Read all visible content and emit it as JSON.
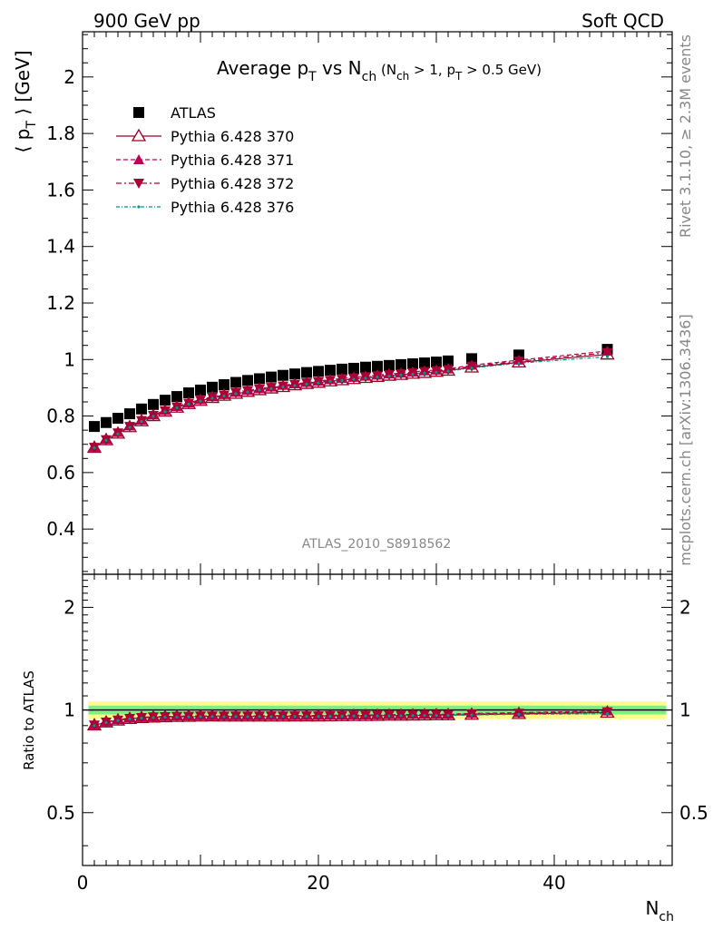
{
  "header": {
    "left": "900 GeV pp",
    "right": "Soft QCD"
  },
  "side_texts": {
    "rivet": "Rivet 3.1.10, ≥ 2.3M events",
    "mcplots": "mcplots.cern.ch [arXiv:1306.3436]"
  },
  "colors": {
    "atlas": "#000000",
    "pythia_370": "#990022",
    "pythia_371": "#bb0055",
    "pythia_372": "#aa0033",
    "pythia_376": "#009988",
    "band_inner": "#80ee80",
    "band_outer": "#ffff88"
  },
  "chart_data": [
    {
      "type": "scatter",
      "title": "Average p_T vs N_ch (N_ch > 1, p_T > 0.5 GeV)",
      "title_parts": {
        "main": "Average p",
        "main_sub": "T",
        "mid": " vs N",
        "mid_sub": "ch",
        "cond_a": " (N",
        "cond_a_sub": "ch",
        "cond_b": " > 1, p",
        "cond_b_sub": "T",
        "cond_c": " > 0.5 GeV)"
      },
      "ylabel": "⟨ p_T ⟩ [GeV]",
      "ylabel_parts": {
        "open": "⟨ p",
        "sub": "T",
        "close": " ⟩  [GeV]"
      },
      "xlim": [
        0,
        50
      ],
      "ylim": [
        0.24,
        2.16
      ],
      "yticks": [
        "0.4",
        "0.6",
        "0.8",
        "1",
        "1.2",
        "1.4",
        "1.6",
        "1.8",
        "2"
      ],
      "watermark": "ATLAS_2010_S8918562",
      "legend": {
        "position": "top-left",
        "entries": [
          "ATLAS",
          "Pythia 6.428 370",
          "Pythia 6.428 371",
          "Pythia 6.428 372",
          "Pythia 6.428 376"
        ]
      },
      "x": [
        1,
        2,
        3,
        4,
        5,
        6,
        7,
        8,
        9,
        10,
        11,
        12,
        13,
        14,
        15,
        16,
        17,
        18,
        19,
        20,
        21,
        22,
        23,
        24,
        25,
        26,
        27,
        28,
        29,
        30,
        31,
        33,
        37,
        44.5
      ],
      "series": [
        {
          "name": "ATLAS",
          "marker": "square",
          "values": [
            0.763,
            0.777,
            0.792,
            0.808,
            0.825,
            0.841,
            0.856,
            0.869,
            0.882,
            0.892,
            0.902,
            0.911,
            0.919,
            0.926,
            0.932,
            0.938,
            0.944,
            0.949,
            0.954,
            0.958,
            0.962,
            0.966,
            0.969,
            0.973,
            0.976,
            0.979,
            0.982,
            0.985,
            0.988,
            0.991,
            0.995,
            1.003,
            1.016,
            1.036
          ]
        },
        {
          "name": "Pythia 6.428 370",
          "marker": "triangle-up-open",
          "values": [
            0.688,
            0.715,
            0.738,
            0.761,
            0.782,
            0.8,
            0.816,
            0.83,
            0.843,
            0.854,
            0.864,
            0.872,
            0.879,
            0.886,
            0.892,
            0.898,
            0.903,
            0.909,
            0.914,
            0.918,
            0.923,
            0.927,
            0.931,
            0.935,
            0.939,
            0.943,
            0.946,
            0.95,
            0.953,
            0.957,
            0.961,
            0.972,
            0.99,
            1.018
          ]
        },
        {
          "name": "Pythia 6.428 371",
          "marker": "triangle-up",
          "values": [
            0.69,
            0.718,
            0.742,
            0.765,
            0.786,
            0.804,
            0.82,
            0.834,
            0.847,
            0.858,
            0.868,
            0.876,
            0.884,
            0.891,
            0.897,
            0.903,
            0.909,
            0.914,
            0.919,
            0.924,
            0.929,
            0.933,
            0.937,
            0.941,
            0.945,
            0.949,
            0.952,
            0.956,
            0.96,
            0.963,
            0.967,
            0.98,
            0.998,
            1.03
          ]
        },
        {
          "name": "Pythia 6.428 372",
          "marker": "triangle-down",
          "values": [
            0.689,
            0.716,
            0.74,
            0.763,
            0.784,
            0.802,
            0.818,
            0.832,
            0.845,
            0.856,
            0.866,
            0.874,
            0.882,
            0.889,
            0.895,
            0.901,
            0.906,
            0.912,
            0.917,
            0.921,
            0.926,
            0.93,
            0.934,
            0.938,
            0.942,
            0.946,
            0.949,
            0.953,
            0.957,
            0.96,
            0.964,
            0.976,
            0.994,
            1.024
          ]
        },
        {
          "name": "Pythia 6.428 376",
          "marker": "dot",
          "values": [
            0.687,
            0.714,
            0.737,
            0.76,
            0.781,
            0.799,
            0.815,
            0.829,
            0.842,
            0.853,
            0.863,
            0.871,
            0.879,
            0.885,
            0.892,
            0.897,
            0.903,
            0.908,
            0.913,
            0.917,
            0.922,
            0.926,
            0.93,
            0.934,
            0.938,
            0.941,
            0.945,
            0.948,
            0.952,
            0.955,
            0.959,
            0.97,
            0.987,
            1.01
          ]
        }
      ]
    },
    {
      "type": "scatter",
      "title": "",
      "ylabel": "Ratio to ATLAS",
      "xlabel": "N_ch",
      "xlabel_parts": {
        "main": "N",
        "sub": "ch"
      },
      "xlim": [
        0,
        50
      ],
      "ylim": [
        0.35,
        2.5
      ],
      "yscale": "log",
      "xticks": [
        "0",
        "20",
        "40"
      ],
      "yticks": [
        "0.5",
        "1",
        "2"
      ],
      "band": {
        "inner_halfwidth": 0.03,
        "outer_halfwidth": 0.06
      },
      "x": [
        1,
        2,
        3,
        4,
        5,
        6,
        7,
        8,
        9,
        10,
        11,
        12,
        13,
        14,
        15,
        16,
        17,
        18,
        19,
        20,
        21,
        22,
        23,
        24,
        25,
        26,
        27,
        28,
        29,
        30,
        31,
        33,
        37,
        44.5
      ],
      "series": [
        {
          "name": "Pythia 6.428 370",
          "marker": "triangle-up-open",
          "values": [
            0.902,
            0.92,
            0.932,
            0.942,
            0.948,
            0.951,
            0.953,
            0.955,
            0.956,
            0.957,
            0.958,
            0.957,
            0.957,
            0.957,
            0.957,
            0.957,
            0.957,
            0.958,
            0.958,
            0.958,
            0.959,
            0.96,
            0.961,
            0.961,
            0.962,
            0.963,
            0.963,
            0.964,
            0.965,
            0.966,
            0.966,
            0.969,
            0.974,
            0.983
          ]
        },
        {
          "name": "Pythia 6.428 371",
          "marker": "triangle-up",
          "values": [
            0.905,
            0.924,
            0.937,
            0.947,
            0.953,
            0.956,
            0.958,
            0.96,
            0.961,
            0.962,
            0.962,
            0.962,
            0.962,
            0.962,
            0.962,
            0.963,
            0.963,
            0.963,
            0.963,
            0.964,
            0.966,
            0.966,
            0.967,
            0.967,
            0.968,
            0.969,
            0.969,
            0.971,
            0.972,
            0.972,
            0.972,
            0.977,
            0.982,
            0.994
          ]
        },
        {
          "name": "Pythia 6.428 372",
          "marker": "triangle-down",
          "values": [
            0.903,
            0.921,
            0.934,
            0.944,
            0.95,
            0.954,
            0.956,
            0.957,
            0.958,
            0.96,
            0.96,
            0.959,
            0.96,
            0.96,
            0.96,
            0.961,
            0.96,
            0.961,
            0.961,
            0.961,
            0.963,
            0.963,
            0.964,
            0.964,
            0.965,
            0.966,
            0.966,
            0.968,
            0.969,
            0.969,
            0.969,
            0.973,
            0.978,
            0.988
          ]
        },
        {
          "name": "Pythia 6.428 376",
          "marker": "dot",
          "values": [
            0.9,
            0.919,
            0.931,
            0.941,
            0.947,
            0.95,
            0.952,
            0.954,
            0.955,
            0.956,
            0.957,
            0.956,
            0.957,
            0.956,
            0.957,
            0.956,
            0.957,
            0.957,
            0.957,
            0.957,
            0.958,
            0.959,
            0.96,
            0.96,
            0.961,
            0.961,
            0.962,
            0.963,
            0.964,
            0.964,
            0.964,
            0.967,
            0.971,
            0.975
          ]
        }
      ]
    }
  ]
}
